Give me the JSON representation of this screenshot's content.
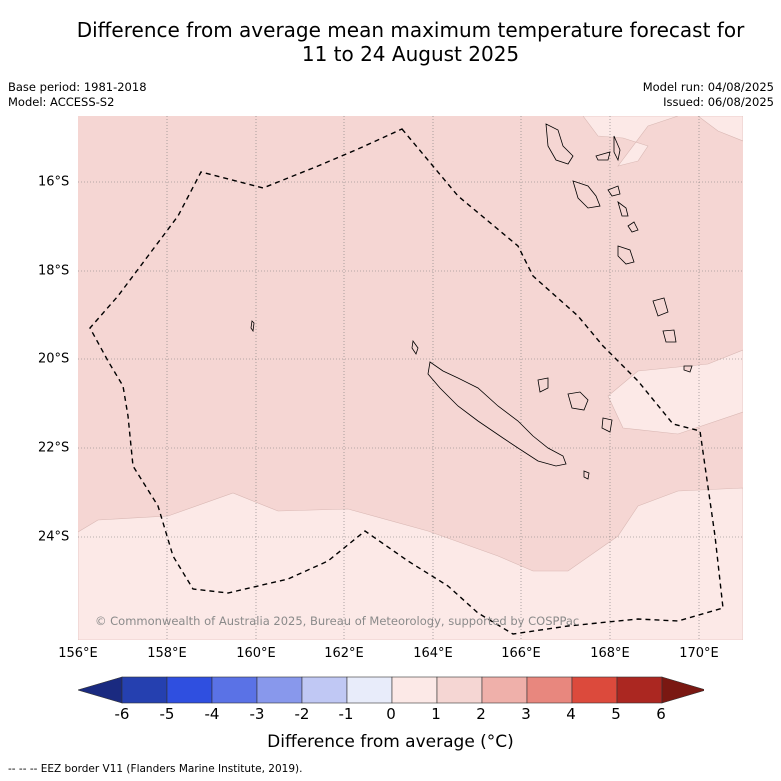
{
  "title_line1": "Difference from average mean maximum temperature forecast for",
  "title_line2": "11 to 24 August 2025",
  "meta_left": {
    "base_period": "Base period: 1981-2018",
    "model": "Model: ACCESS-S2"
  },
  "meta_right": {
    "model_run": "Model run: 04/08/2025",
    "issued": "Issued: 06/08/2025"
  },
  "copyright": "© Commonwealth of Australia 2025, Bureau of Meteorology, supported by COSPPac",
  "longitude_labels": [
    "156°E",
    "158°E",
    "160°E",
    "162°E",
    "164°E",
    "166°E",
    "168°E",
    "170°E"
  ],
  "latitude_labels": [
    "16°S",
    "18°S",
    "20°S",
    "22°S",
    "24°S"
  ],
  "colorbar": {
    "ticks": [
      "-6",
      "-5",
      "-4",
      "-3",
      "-2",
      "-1",
      "0",
      "1",
      "2",
      "3",
      "4",
      "5",
      "6"
    ],
    "colors": [
      "#1a2a80",
      "#2540b0",
      "#2f4fe0",
      "#5a72e6",
      "#8898ec",
      "#c0c8f4",
      "#e8ecfa",
      "#fce9e7",
      "#f5d6d3",
      "#efb0aa",
      "#e8877e",
      "#dc4a3c",
      "#ab2721",
      "#7a1812"
    ],
    "title": "Difference from average (°C)"
  },
  "footnote": "-- -- -- EEZ border V11 (Flanders Marine Institute, 2019).",
  "chart_data": {
    "type": "heatmap",
    "extent": {
      "lon": [
        156,
        171
      ],
      "lat": [
        -14.8,
        -26.6
      ]
    },
    "regions": [
      {
        "range": "0 to 1",
        "color": "#fce9e7",
        "area": "south of ~23.5°S and around 168–171°E, 20–22°S, and far north-east corner"
      },
      {
        "range": "1 to 2",
        "color": "#f5d6d3",
        "area": "most of the domain north of ~23.5°S"
      }
    ]
  }
}
